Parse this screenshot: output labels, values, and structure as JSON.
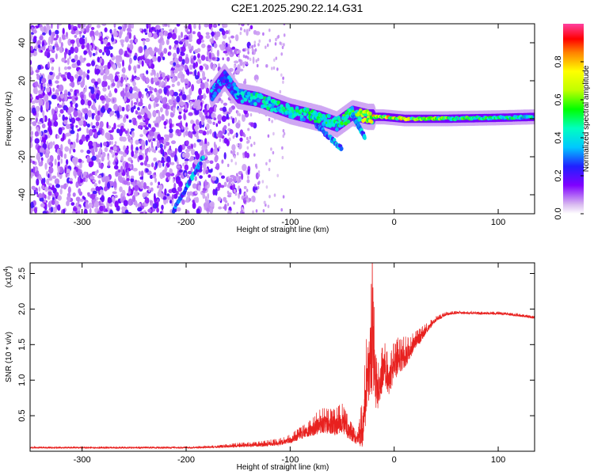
{
  "title": "C2E1.2025.290.22.14.G31",
  "chart_data": [
    {
      "type": "heatmap",
      "name": "spectrogram",
      "xlabel": "Height of straight line (km)",
      "ylabel": "Frequency (Hz)",
      "xlim": [
        -350,
        135
      ],
      "ylim": [
        -50,
        50
      ],
      "x_ticks": [
        -300,
        -200,
        -100,
        0,
        100
      ],
      "x_tick_labels": [
        "-300",
        "-200",
        "-100",
        "0",
        "100"
      ],
      "y_ticks": [
        -40,
        -20,
        0,
        20,
        40
      ],
      "y_tick_labels": [
        "-40",
        "-20",
        "0",
        "20",
        "40"
      ],
      "colorbar": {
        "label": "Normalized spectral amplitude",
        "range": [
          0,
          1
        ],
        "ticks": [
          0.0,
          0.2,
          0.4,
          0.6,
          0.8
        ],
        "tick_labels": [
          "0.0",
          "0.2",
          "0.4",
          "0.6",
          "0.8"
        ],
        "stops": [
          {
            "v": 0.0,
            "color": "#ffffff"
          },
          {
            "v": 0.05,
            "color": "#d8b8f0"
          },
          {
            "v": 0.15,
            "color": "#8000ff"
          },
          {
            "v": 0.25,
            "color": "#2020ff"
          },
          {
            "v": 0.35,
            "color": "#00c8ff"
          },
          {
            "v": 0.45,
            "color": "#00ffc0"
          },
          {
            "v": 0.55,
            "color": "#00ff00"
          },
          {
            "v": 0.65,
            "color": "#c0ff00"
          },
          {
            "v": 0.75,
            "color": "#ffff00"
          },
          {
            "v": 0.85,
            "color": "#ff8000"
          },
          {
            "v": 0.92,
            "color": "#ff0000"
          },
          {
            "v": 1.0,
            "color": "#ff40a0"
          }
        ]
      },
      "ridge": [
        {
          "x": -175,
          "f": 13,
          "amp": 0.4
        },
        {
          "x": -163,
          "f": 22,
          "amp": 0.3
        },
        {
          "x": -150,
          "f": 12,
          "amp": 0.45
        },
        {
          "x": -130,
          "f": 10,
          "amp": 0.5
        },
        {
          "x": -115,
          "f": 7,
          "amp": 0.5
        },
        {
          "x": -100,
          "f": 4,
          "amp": 0.52
        },
        {
          "x": -85,
          "f": 2,
          "amp": 0.55
        },
        {
          "x": -70,
          "f": 0,
          "amp": 0.55
        },
        {
          "x": -55,
          "f": -3,
          "amp": 0.55
        },
        {
          "x": -40,
          "f": 3,
          "amp": 0.6
        },
        {
          "x": -25,
          "f": 1,
          "amp": 0.8
        },
        {
          "x": -10,
          "f": 1,
          "amp": 0.85
        },
        {
          "x": 10,
          "f": 0,
          "amp": 0.8
        },
        {
          "x": 50,
          "f": 0,
          "amp": 0.62
        },
        {
          "x": 100,
          "f": 0.5,
          "amp": 0.55
        },
        {
          "x": 135,
          "f": 1,
          "amp": 0.52
        }
      ],
      "branches": [
        {
          "from_x": -75,
          "from_f": -3,
          "to_x": -50,
          "to_f": -16
        },
        {
          "from_x": -40,
          "from_f": 2,
          "to_x": -28,
          "to_f": -10
        },
        {
          "from_x": -212,
          "from_f": -48,
          "to_x": -183,
          "to_f": -20
        }
      ]
    },
    {
      "type": "line",
      "name": "snr",
      "xlabel": "Height of straight line (km)",
      "ylabel": "SNR (10 * v/v)",
      "y_multiplier_label": "(x10",
      "y_multiplier_exp": "4",
      "xlim": [
        -350,
        135
      ],
      "ylim": [
        0,
        26500
      ],
      "x_ticks": [
        -300,
        -200,
        -100,
        0,
        100
      ],
      "x_tick_labels": [
        "-300",
        "-200",
        "-100",
        "0",
        "100"
      ],
      "y_ticks": [
        5000,
        10000,
        15000,
        20000,
        25000
      ],
      "y_tick_labels": [
        "0.5",
        "1.0",
        "1.5",
        "2.0",
        "2.5"
      ],
      "color": "#e8211f",
      "series": [
        {
          "name": "SNR",
          "x": [
            -350,
            -300,
            -250,
            -200,
            -170,
            -150,
            -130,
            -110,
            -100,
            -90,
            -80,
            -70,
            -60,
            -50,
            -45,
            -40,
            -35,
            -30,
            -25,
            -20,
            -18,
            -15,
            -10,
            -5,
            0,
            5,
            10,
            15,
            20,
            25,
            30,
            40,
            50,
            60,
            80,
            100,
            120,
            135
          ],
          "y": [
            500,
            500,
            500,
            500,
            600,
            800,
            900,
            1200,
            1600,
            2300,
            3000,
            4000,
            3600,
            4200,
            3200,
            2200,
            1600,
            3500,
            12000,
            14500,
            9000,
            8500,
            12000,
            10000,
            12000,
            13000,
            13500,
            14000,
            15500,
            16000,
            17000,
            18500,
            19300,
            19500,
            19400,
            19400,
            19100,
            18800
          ],
          "noise": [
            100,
            100,
            100,
            100,
            150,
            250,
            300,
            400,
            500,
            700,
            1000,
            1400,
            1500,
            1600,
            1300,
            900,
            700,
            3000,
            6000,
            6000,
            3000,
            2500,
            2500,
            2200,
            2200,
            2000,
            1800,
            1400,
            1000,
            800,
            600,
            300,
            200,
            150,
            150,
            150,
            150,
            150
          ],
          "spikes": [
            {
              "x": -21,
              "y": 26500
            },
            {
              "x": -22,
              "y": 23500
            },
            {
              "x": -20,
              "y": 21000
            }
          ]
        }
      ]
    }
  ]
}
